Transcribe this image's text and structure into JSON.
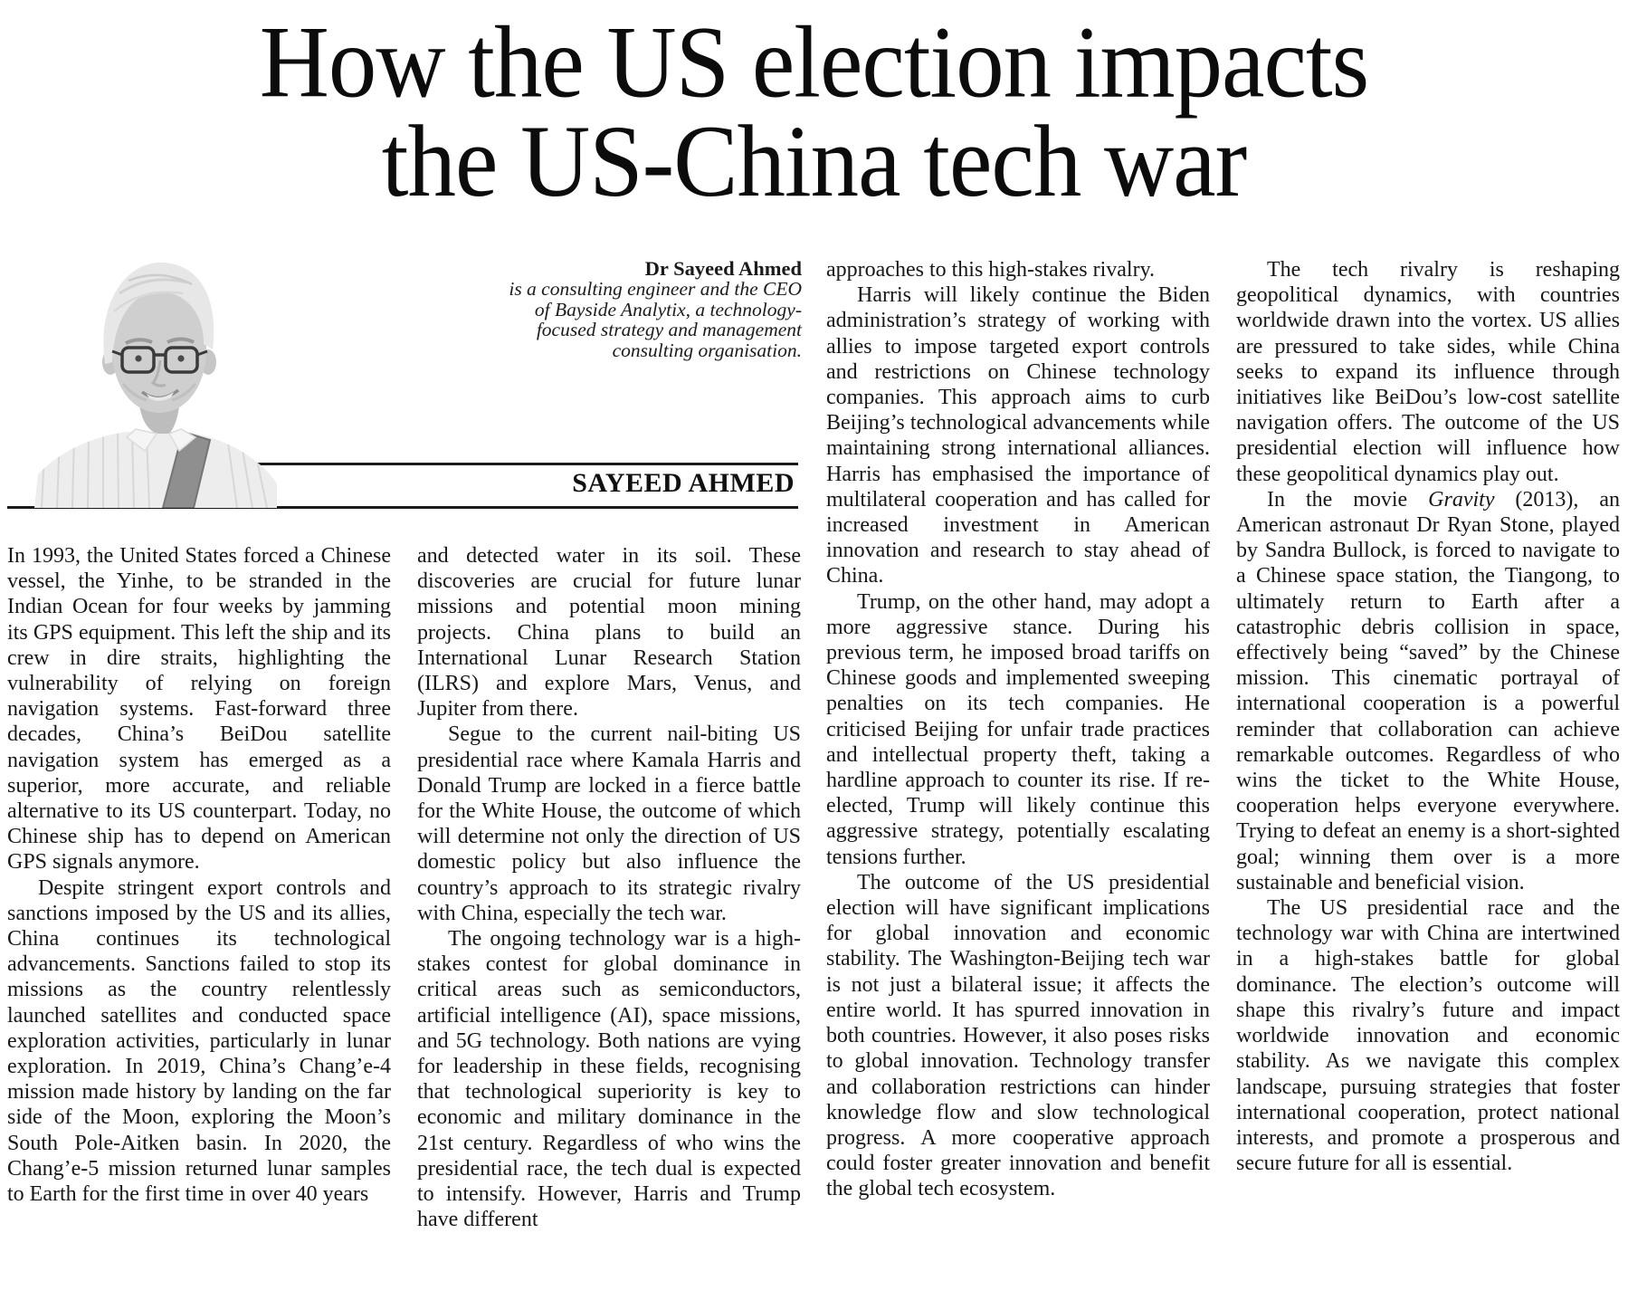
{
  "colors": {
    "ink": "#161616",
    "rule": "#1a1a1a"
  },
  "article": {
    "headline_line1": "How the US election impacts",
    "headline_line2": "the US-China tech war",
    "byline": {
      "name": "Dr Sayeed Ahmed",
      "description_lines": [
        "is a consulting engineer and the CEO",
        "of Bayside Analytix, a technology-",
        "focused strategy and management",
        "consulting organisation."
      ]
    },
    "author_nameplate": "SAYEED AHMED",
    "columns": [
      {
        "paragraphs": [
          {
            "indent": false,
            "text": "In 1993, the United States forced a Chinese vessel, the Yinhe, to be stranded in the Indian Ocean for four weeks by jamming its GPS equipment. This left the ship and its crew in dire straits, highlighting the vulnerability of relying on foreign navigation systems. Fast-forward three decades, China’s BeiDou satellite navigation system has emerged as a superior, more accurate, and reliable alternative to its US counterpart. Today, no Chinese ship has to depend on American GPS signals anymore."
          },
          {
            "indent": true,
            "text": "Despite stringent export controls and sanctions imposed by the US and its allies, China continues its technological advancements. Sanctions failed to stop its missions as the country relentlessly launched satellites and conducted space exploration activities, particularly in lunar exploration. In 2019, China’s Chang’e-4 mission made history by landing on the far side of the Moon, exploring the Moon’s South Pole-Aitken basin. In 2020, the Chang’e-5 mission returned lunar samples to Earth for the first time in over 40 years"
          }
        ]
      },
      {
        "paragraphs": [
          {
            "indent": false,
            "text": "and detected water in its soil. These discoveries are crucial for future lunar missions and potential moon mining projects. China plans to build an International Lunar Research Station (ILRS) and explore Mars, Venus, and Jupiter from there."
          },
          {
            "indent": true,
            "text": "Segue to the current nail-biting US presidential race where Kamala Harris and Donald Trump are locked in a fierce battle for the White House, the outcome of which will determine not only the direction of US domestic policy but also influence the country’s approach to its strategic rivalry with China, especially the tech war."
          },
          {
            "indent": true,
            "text": "The ongoing technology war is a high-stakes contest for global dominance in critical areas such as semiconductors, artificial intelligence (AI), space missions, and 5G technology. Both nations are vying for leadership in these fields, recognising that technological superiority is key to economic and military dominance in the 21st century. Regardless of who wins the presidential race, the tech dual is expected to intensify. However, Harris and Trump have different"
          }
        ]
      },
      {
        "paragraphs": [
          {
            "indent": false,
            "text": "approaches to this high-stakes rivalry."
          },
          {
            "indent": true,
            "text": "Harris will likely continue the Biden administration’s strategy of working with allies to impose targeted export controls and restrictions on Chinese technology companies. This approach aims to curb Beijing’s technological advancements while maintaining strong international alliances. Harris has emphasised the importance of multilateral cooperation and has called for increased investment in American innovation and research to stay ahead of China."
          },
          {
            "indent": true,
            "text": "Trump, on the other hand, may adopt a more aggressive stance. During his previous term, he imposed broad tariffs on Chinese goods and implemented sweeping penalties on its tech companies. He criticised Beijing for unfair trade practices and intellectual property theft, taking a hardline approach to counter its rise. If re-elected, Trump will likely continue this aggressive strategy, potentially escalating tensions further."
          },
          {
            "indent": true,
            "text": "The outcome of the US presidential election will have significant implications for global innovation and economic stability. The Washington-Beijing tech war is not just a bilateral issue; it affects the entire world. It has spurred innovation in both countries. However, it also poses risks to global innovation. Technology transfer and collaboration restrictions can hinder knowledge flow and slow technological progress. A more cooperative approach could foster greater innovation and benefit the global tech ecosystem."
          }
        ]
      },
      {
        "paragraphs": [
          {
            "indent": true,
            "text": "The tech rivalry is reshaping geopolitical dynamics, with countries worldwide drawn into the vortex. US allies are pressured to take sides, while China seeks to expand its influence through initiatives like BeiDou’s low-cost satellite navigation offers. The outcome of the US presidential election will influence how these geopolitical dynamics play out."
          },
          {
            "indent": true,
            "text": "In the movie *Gravity* (2013), an American astronaut Dr Ryan Stone, played by Sandra Bullock, is forced to navigate to a Chinese space station, the Tiangong, to ultimately return to Earth after a catastrophic debris collision in space, effectively being “saved” by the Chinese mission. This cinematic portrayal of international cooperation is a powerful reminder that collaboration can achieve remarkable outcomes. Regardless of who wins the ticket to the White House, cooperation helps everyone everywhere. Trying to defeat an enemy is a short-sighted goal; winning them over is a more sustainable and beneficial vision."
          },
          {
            "indent": true,
            "text": "The US presidential race and the technology war with China are intertwined in a high-stakes battle for global dominance. The election’s outcome will shape this rivalry’s future and impact worldwide innovation and economic stability. As we navigate this complex landscape, pursuing strategies that foster international cooperation, protect national interests, and promote a prosperous and secure future for all is essential."
          }
        ]
      }
    ]
  }
}
